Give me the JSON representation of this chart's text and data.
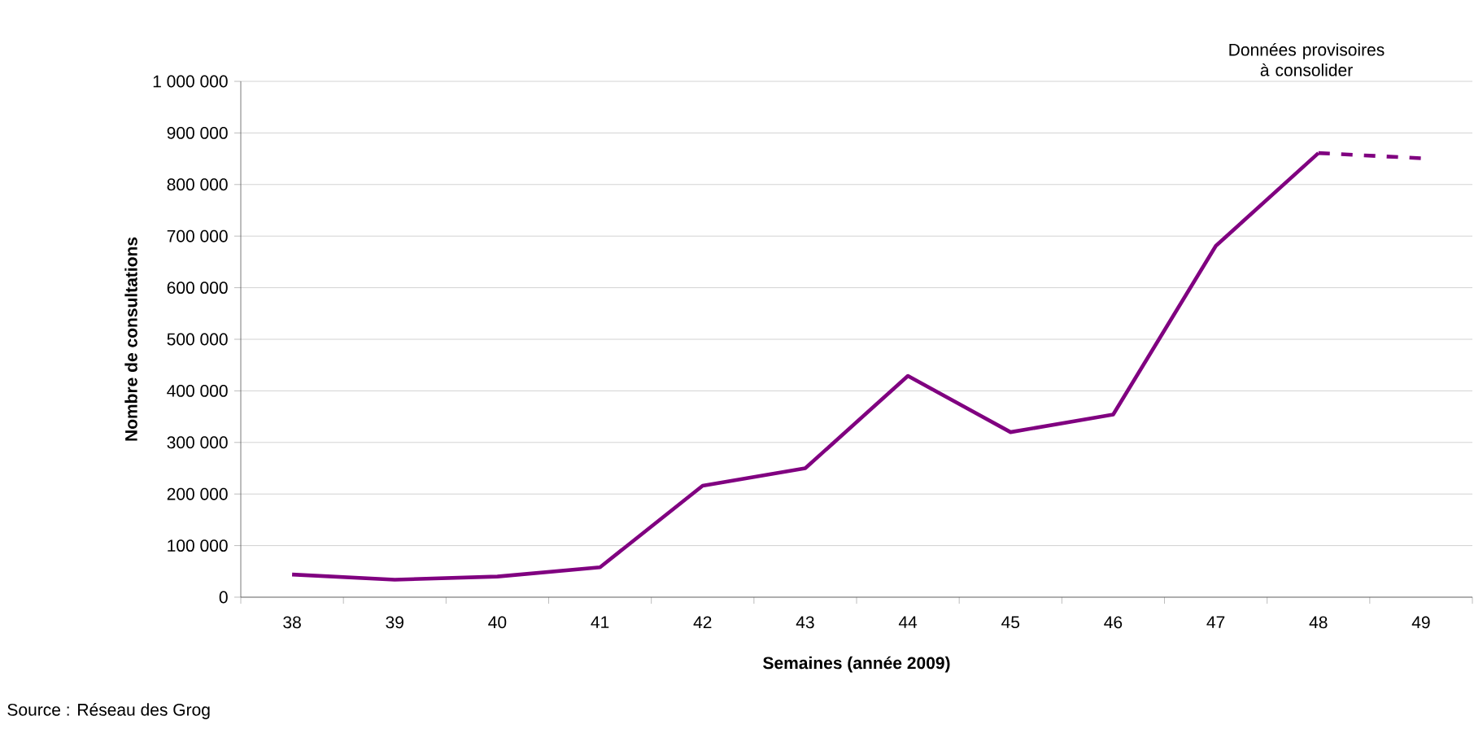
{
  "chart_data": {
    "type": "line",
    "xlabel": "Semaines (année 2009)",
    "ylabel": "Nombre de consultations",
    "categories": [
      "38",
      "39",
      "40",
      "41",
      "42",
      "43",
      "44",
      "45",
      "46",
      "47",
      "48",
      "49"
    ],
    "series": [
      {
        "color": "#800080",
        "line_style": "solid",
        "values": [
          44000,
          34000,
          40000,
          58000,
          216000,
          250000,
          429000,
          320000,
          354000,
          681000,
          861000,
          null
        ]
      },
      {
        "color": "#800080",
        "line_style": "dashed",
        "values": [
          null,
          null,
          null,
          null,
          null,
          null,
          null,
          null,
          null,
          null,
          861000,
          851000
        ]
      }
    ],
    "ylim": [
      0,
      1000000
    ],
    "yticks": [
      0,
      {
        "value": 100000,
        "label": "100 000"
      },
      {
        "value": 200000,
        "label": "200 000"
      },
      {
        "value": 300000,
        "label": "300 000"
      },
      {
        "value": 400000,
        "label": "400 000"
      },
      {
        "value": 500000,
        "label": "500 000"
      },
      {
        "value": 600000,
        "label": "600 000"
      },
      {
        "value": 700000,
        "label": "700 000"
      },
      {
        "value": 800000,
        "label": "800 000"
      },
      {
        "value": 900000,
        "label": "900 000"
      },
      {
        "value": 1000000,
        "label": "1 000 000"
      }
    ],
    "grid": "y",
    "marker": "none",
    "annotations": [
      "Données provisoires à consolider",
      "Source : Réseau des Grog"
    ]
  }
}
